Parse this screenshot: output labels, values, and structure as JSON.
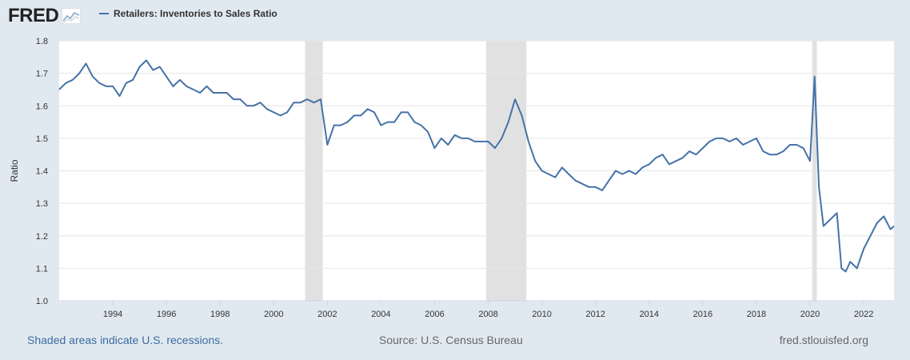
{
  "header": {
    "logo_text": "FRED",
    "logo_icon": "fred-chart-logo-icon",
    "legend_label": "Retailers: Inventories to Sales Ratio"
  },
  "footer": {
    "left": "Shaded areas indicate U.S. recessions.",
    "middle": "Source: U.S. Census Bureau",
    "right": "fred.stlouisfed.org"
  },
  "colors": {
    "series": "#4572a7",
    "background": "#e1e9f0",
    "plot_background": "#ffffff",
    "recession": "#e1e1e1",
    "gridline": "#e6e6e6",
    "link": "#3c6ba1"
  },
  "chart_data": {
    "type": "line",
    "title": "",
    "xlabel": "",
    "ylabel": "Ratio",
    "xlim": [
      1992.0,
      2023.13
    ],
    "ylim": [
      1.0,
      1.8
    ],
    "x_ticks": [
      1994,
      1996,
      1998,
      2000,
      2002,
      2004,
      2006,
      2008,
      2010,
      2012,
      2014,
      2016,
      2018,
      2020,
      2022
    ],
    "y_ticks": [
      1.0,
      1.1,
      1.2,
      1.3,
      1.4,
      1.5,
      1.6,
      1.7,
      1.8
    ],
    "y_tick_labels": [
      "1.0",
      "1.1",
      "1.2",
      "1.3",
      "1.4",
      "1.5",
      "1.6",
      "1.7",
      "1.8"
    ],
    "grid": true,
    "recessions": [
      [
        2001.17,
        2001.83
      ],
      [
        2007.92,
        2009.42
      ],
      [
        2020.08,
        2020.25
      ]
    ],
    "series": [
      {
        "name": "Retailers: Inventories to Sales Ratio",
        "x": [
          1992.0,
          1992.25,
          1992.5,
          1992.75,
          1993.0,
          1993.25,
          1993.5,
          1993.75,
          1994.0,
          1994.25,
          1994.5,
          1994.75,
          1995.0,
          1995.25,
          1995.5,
          1995.75,
          1996.0,
          1996.25,
          1996.5,
          1996.75,
          1997.0,
          1997.25,
          1997.5,
          1997.75,
          1998.0,
          1998.25,
          1998.5,
          1998.75,
          1999.0,
          1999.25,
          1999.5,
          1999.75,
          2000.0,
          2000.25,
          2000.5,
          2000.75,
          2001.0,
          2001.25,
          2001.5,
          2001.75,
          2002.0,
          2002.25,
          2002.5,
          2002.75,
          2003.0,
          2003.25,
          2003.5,
          2003.75,
          2004.0,
          2004.25,
          2004.5,
          2004.75,
          2005.0,
          2005.25,
          2005.5,
          2005.75,
          2006.0,
          2006.25,
          2006.5,
          2006.75,
          2007.0,
          2007.25,
          2007.5,
          2007.75,
          2008.0,
          2008.25,
          2008.5,
          2008.75,
          2009.0,
          2009.25,
          2009.5,
          2009.75,
          2010.0,
          2010.25,
          2010.5,
          2010.75,
          2011.0,
          2011.25,
          2011.5,
          2011.75,
          2012.0,
          2012.25,
          2012.5,
          2012.75,
          2013.0,
          2013.25,
          2013.5,
          2013.75,
          2014.0,
          2014.25,
          2014.5,
          2014.75,
          2015.0,
          2015.25,
          2015.5,
          2015.75,
          2016.0,
          2016.25,
          2016.5,
          2016.75,
          2017.0,
          2017.25,
          2017.5,
          2017.75,
          2018.0,
          2018.25,
          2018.5,
          2018.75,
          2019.0,
          2019.25,
          2019.5,
          2019.75,
          2020.0,
          2020.17,
          2020.33,
          2020.5,
          2020.75,
          2021.0,
          2021.17,
          2021.33,
          2021.5,
          2021.75,
          2022.0,
          2022.25,
          2022.5,
          2022.75,
          2023.0,
          2023.13
        ],
        "values": [
          1.65,
          1.67,
          1.68,
          1.7,
          1.73,
          1.69,
          1.67,
          1.66,
          1.66,
          1.63,
          1.67,
          1.68,
          1.72,
          1.74,
          1.71,
          1.72,
          1.69,
          1.66,
          1.68,
          1.66,
          1.65,
          1.64,
          1.66,
          1.64,
          1.64,
          1.64,
          1.62,
          1.62,
          1.6,
          1.6,
          1.61,
          1.59,
          1.58,
          1.57,
          1.58,
          1.61,
          1.61,
          1.62,
          1.61,
          1.62,
          1.48,
          1.54,
          1.54,
          1.55,
          1.57,
          1.57,
          1.59,
          1.58,
          1.54,
          1.55,
          1.55,
          1.58,
          1.58,
          1.55,
          1.54,
          1.52,
          1.47,
          1.5,
          1.48,
          1.51,
          1.5,
          1.5,
          1.49,
          1.49,
          1.49,
          1.47,
          1.5,
          1.55,
          1.62,
          1.57,
          1.49,
          1.43,
          1.4,
          1.39,
          1.38,
          1.41,
          1.39,
          1.37,
          1.36,
          1.35,
          1.35,
          1.34,
          1.37,
          1.4,
          1.39,
          1.4,
          1.39,
          1.41,
          1.42,
          1.44,
          1.45,
          1.42,
          1.43,
          1.44,
          1.46,
          1.45,
          1.47,
          1.49,
          1.5,
          1.5,
          1.49,
          1.5,
          1.48,
          1.49,
          1.5,
          1.46,
          1.45,
          1.45,
          1.46,
          1.48,
          1.48,
          1.47,
          1.43,
          1.69,
          1.35,
          1.23,
          1.25,
          1.27,
          1.1,
          1.09,
          1.12,
          1.1,
          1.16,
          1.2,
          1.24,
          1.26,
          1.22,
          1.23
        ]
      }
    ]
  }
}
